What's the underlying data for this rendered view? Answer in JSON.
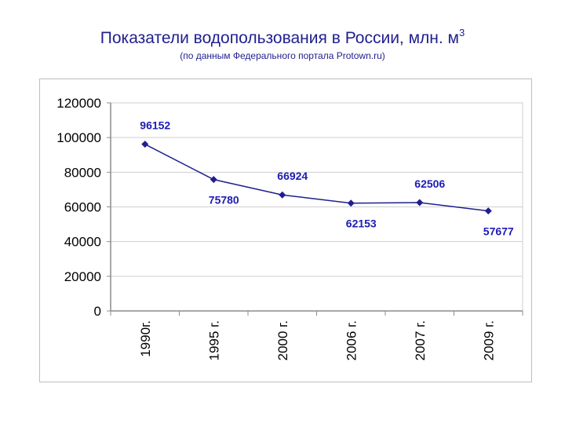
{
  "page": {
    "title": "Показатели водопользования в России, млн. м",
    "title_sup": "3",
    "subtitle": "(по данным Федерального портала Protown.ru)"
  },
  "chart_data": {
    "type": "line",
    "categories": [
      "1990г.",
      "1995 г.",
      "2000 г.",
      "2006 г.",
      "2007 г.",
      "2009 г."
    ],
    "values": [
      96152,
      75780,
      66924,
      62153,
      62506,
      57677
    ],
    "data_labels": [
      "96152",
      "75780",
      "66924",
      "62153",
      "62506",
      "57677"
    ],
    "ylim": [
      0,
      120000
    ],
    "yticks": [
      0,
      20000,
      40000,
      60000,
      80000,
      100000,
      120000
    ],
    "ytick_labels": [
      "0",
      "20000",
      "40000",
      "60000",
      "80000",
      "100000",
      "120000"
    ],
    "label_position": [
      "above",
      "below",
      "above",
      "below",
      "above",
      "below"
    ],
    "grid": true,
    "legend": "none",
    "colors": {
      "line": "#1f1f8f",
      "label": "#1c1cb4",
      "grid": "#cfcfcf",
      "axis": "#8c8c8c",
      "text": "#000000"
    }
  }
}
